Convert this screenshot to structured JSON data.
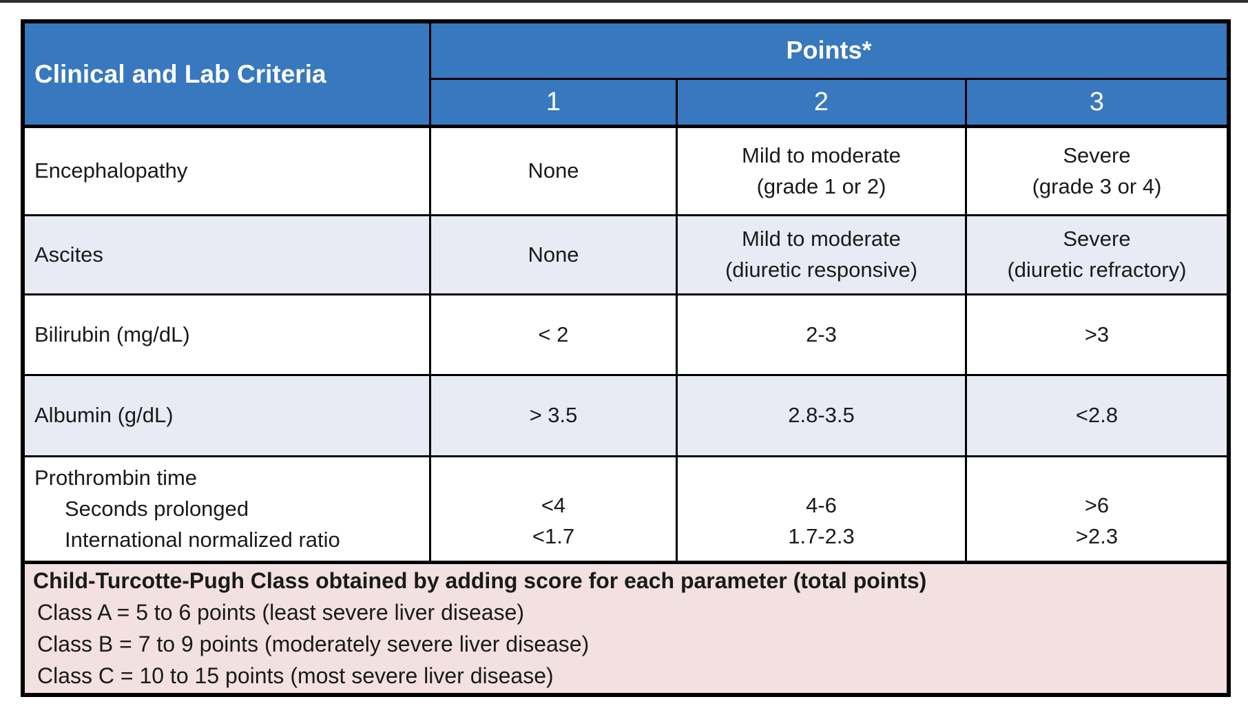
{
  "colors": {
    "header_blue": "#3878BE",
    "row_alt": "#E8EBF3",
    "footer_pink": "#F2E1E0",
    "border_black": "#000000"
  },
  "table": {
    "header": {
      "criteria_label": "Clinical and Lab Criteria",
      "points_label": "Points*",
      "point_columns": [
        "1",
        "2",
        "3"
      ]
    },
    "rows": [
      {
        "criteria": "Encephalopathy",
        "p1": "None",
        "p2": "Mild to moderate\n(grade 1 or 2)",
        "p3": "Severe\n(grade 3 or 4)"
      },
      {
        "criteria": "Ascites",
        "p1": "None",
        "p2": "Mild to moderate\n(diuretic responsive)",
        "p3": "Severe\n(diuretic refractory)"
      },
      {
        "criteria": "Bilirubin (mg/dL)",
        "p1": "< 2",
        "p2": "2-3",
        "p3": ">3"
      },
      {
        "criteria": "Albumin (g/dL)",
        "p1": "> 3.5",
        "p2": "2.8-3.5",
        "p3": "<2.8"
      }
    ],
    "prothrombin": {
      "label": "Prothrombin time",
      "sub_rows": [
        {
          "criteria": "Seconds prolonged",
          "p1": "<4",
          "p2": "4-6",
          "p3": ">6"
        },
        {
          "criteria": "International normalized ratio",
          "p1": "<1.7",
          "p2": "1.7-2.3",
          "p3": ">2.3"
        }
      ]
    },
    "footer": {
      "title": "Child-Turcotte-Pugh Class obtained by adding score for each parameter (total points)",
      "classes": [
        "Class A = 5 to 6 points (least severe liver disease)",
        "Class B = 7 to 9 points (moderately severe liver disease)",
        "Class C = 10 to 15 points (most severe liver disease)"
      ]
    }
  }
}
